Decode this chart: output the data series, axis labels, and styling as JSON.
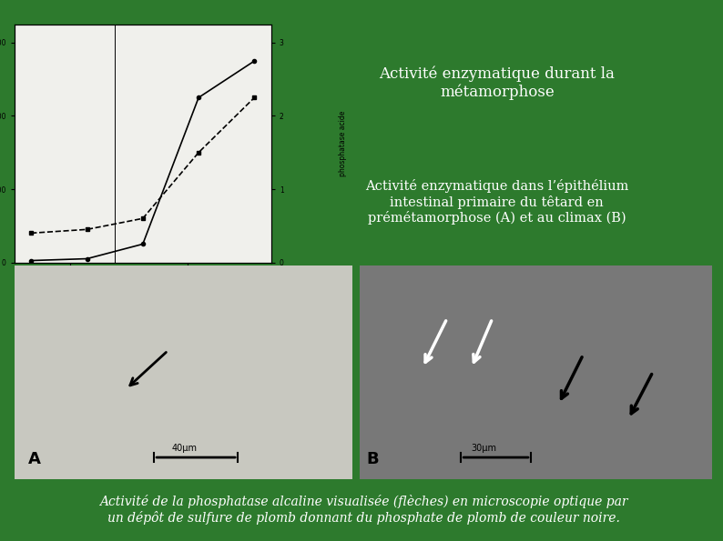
{
  "bg_color": "#2d7a2d",
  "dark_bg": "#1a3a1a",
  "title1": "Activité enzymatique durant la\nmétamorphose",
  "title2": "Activité enzymatique dans l’épithélium\nintestinal primaire du têtard en\nprémétamorphose (A) et au climax (B)",
  "caption": "Activité de la phosphatase alcaline visualisée (flèches) en microscopie optique par\nun dépôt de sulfure de plomb donnant du phosphate de plomb de couleur noire.",
  "graph_bg": "#f0f0ec",
  "cathepsine_y": [
    50,
    100,
    500,
    4500,
    5500
  ],
  "phosphatase_y": [
    800,
    900,
    1200,
    3000,
    4500
  ],
  "text_color": "#ffffff",
  "micro_A_color": "#c8c8c0",
  "micro_B_color": "#787878"
}
